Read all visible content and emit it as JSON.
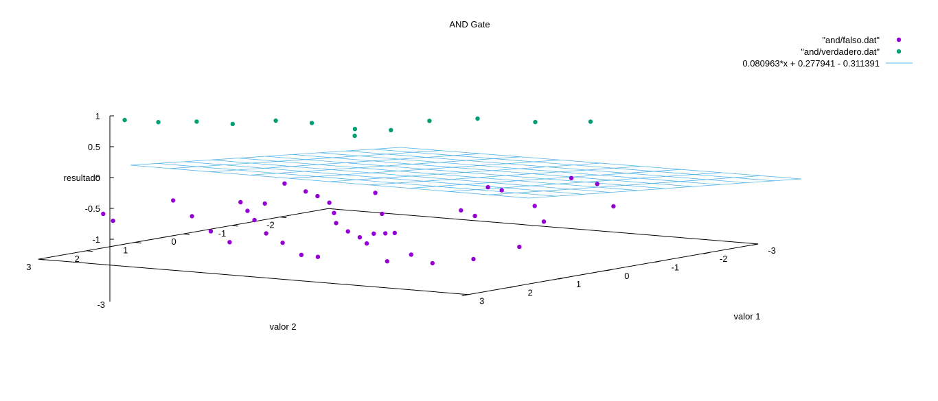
{
  "chart_data": {
    "type": "scatter",
    "title": "AND Gate",
    "xlabel": "valor 1",
    "ylabel": "valor 2",
    "zlabel": "resultado",
    "xlim": [
      -3,
      3
    ],
    "ylim": [
      -3,
      3
    ],
    "zlim": [
      -1,
      1
    ],
    "x_ticks": [
      "-3",
      "-2",
      "-1",
      "0",
      "1",
      "2",
      "3"
    ],
    "y_ticks": [
      "-2",
      "-1",
      "0",
      "1",
      "2",
      "3"
    ],
    "z_ticks": [
      "1",
      "0.5",
      "0",
      "-0.5",
      "-1"
    ],
    "z_base_label": "-3",
    "legend_position": "top-right",
    "series": [
      {
        "name": "\"and/falso.dat\"",
        "type": "points",
        "color": "#9400d3",
        "points": [
          [
            -1.9,
            -0.9,
            -0.53
          ],
          [
            -1.6,
            -0.7,
            -0.55
          ],
          [
            -1.3,
            -0.5,
            -0.6
          ],
          [
            -1.1,
            -0.3,
            -0.72
          ],
          [
            -0.8,
            0.1,
            -0.8
          ],
          [
            -0.5,
            0.3,
            -0.88
          ],
          [
            -0.2,
            0.5,
            -0.92
          ],
          [
            0.1,
            0.8,
            -0.95
          ],
          [
            0.4,
            1.1,
            -0.72
          ],
          [
            0.9,
            1.6,
            -0.6
          ],
          [
            1.3,
            2.0,
            -0.5
          ],
          [
            1.8,
            2.4,
            -0.75
          ],
          [
            2.3,
            2.7,
            -0.8
          ],
          [
            -2.0,
            0.3,
            -0.55
          ],
          [
            -1.7,
            0.6,
            -0.62
          ],
          [
            -1.4,
            0.9,
            -0.7
          ],
          [
            -0.9,
            1.4,
            -0.8
          ],
          [
            -0.4,
            1.8,
            -0.85
          ],
          [
            0.2,
            2.3,
            -0.92
          ],
          [
            0.7,
            2.7,
            -0.85
          ],
          [
            -2.4,
            1.1,
            -0.45
          ],
          [
            -1.8,
            1.6,
            -0.58
          ],
          [
            -1.2,
            2.1,
            -0.7
          ],
          [
            -0.6,
            2.6,
            -0.75
          ],
          [
            -2.5,
            2.4,
            -0.5
          ],
          [
            -2.7,
            1.9,
            -0.7
          ],
          [
            -2.2,
            -0.5,
            -0.7
          ],
          [
            -2.6,
            -1.5,
            -0.55
          ],
          [
            -1.4,
            -1.6,
            -0.6
          ],
          [
            0.5,
            -1.4,
            -0.35
          ],
          [
            1.5,
            -0.6,
            -0.4
          ],
          [
            2.1,
            0.1,
            -0.5
          ],
          [
            2.6,
            -0.6,
            -0.3
          ],
          [
            1.0,
            -2.1,
            -0.2
          ],
          [
            1.9,
            -1.3,
            -0.1
          ],
          [
            -0.3,
            -2.3,
            -0.5
          ],
          [
            0.2,
            -1.0,
            -0.65
          ],
          [
            0.8,
            -0.4,
            -0.6
          ],
          [
            2.5,
            1.2,
            -0.72
          ],
          [
            -0.7,
            -0.7,
            -0.75
          ],
          [
            2.4,
            2.0,
            -0.82
          ],
          [
            1.6,
            2.6,
            -0.85
          ]
        ]
      },
      {
        "name": "\"and/verdadero.dat\"",
        "type": "points",
        "color": "#009e73",
        "points": [
          [
            1.2,
            -2.2,
            0.72
          ],
          [
            0.9,
            -1.5,
            0.78
          ],
          [
            0.5,
            -0.9,
            0.88
          ],
          [
            0.3,
            -0.2,
            0.92
          ],
          [
            0.1,
            0.3,
            0.82
          ],
          [
            -0.2,
            0.6,
            0.85
          ],
          [
            -0.6,
            0.9,
            0.95
          ],
          [
            -0.9,
            1.2,
            1.0
          ],
          [
            -1.3,
            1.5,
            0.95
          ],
          [
            -1.6,
            1.8,
            1.0
          ],
          [
            -2.0,
            2.0,
            0.98
          ],
          [
            -2.2,
            2.4,
            1.05
          ],
          [
            0.0,
            0.9,
            0.8
          ]
        ]
      },
      {
        "name": "0.080963*x + 0.277941 - 0.311391",
        "type": "surface",
        "color": "#56b4e9",
        "slope_x": 0.080963,
        "slope_y": 0.277941,
        "intercept": -0.311391
      }
    ]
  }
}
